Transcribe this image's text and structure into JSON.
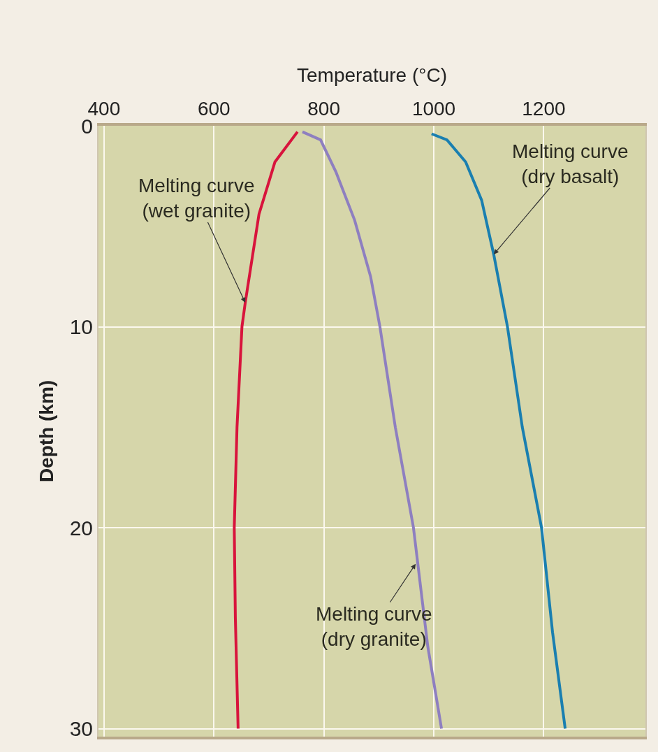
{
  "chart_data": {
    "type": "line",
    "xlabel": "Temperature (°C)",
    "ylabel": "Depth (km)",
    "xlim": [
      390,
      1385
    ],
    "xticks": [
      400,
      600,
      800,
      1000,
      1200
    ],
    "ylim": [
      30.4,
      0
    ],
    "yticks": [
      0,
      10,
      20,
      30
    ],
    "grid": true,
    "marker": "none",
    "line_style": "solid",
    "series": [
      {
        "color": "#d8143c",
        "x": [
          752,
          711,
          682,
          657,
          651,
          642,
          637,
          639,
          644
        ],
        "values": [
          0.3,
          1.8,
          4.4,
          8.8,
          10,
          15,
          20,
          24.5,
          30
        ]
      },
      {
        "color": "#8e7fc0",
        "x": [
          761,
          794,
          822,
          856,
          885,
          902,
          930,
          963,
          989,
          1014
        ],
        "values": [
          0.3,
          0.7,
          2.3,
          4.7,
          7.5,
          10,
          15,
          20,
          25.9,
          30
        ]
      },
      {
        "color": "#1a7fb0",
        "x": [
          996,
          1024,
          1058,
          1087,
          1109,
          1134,
          1161,
          1196,
          1216,
          1239
        ],
        "values": [
          0.4,
          0.7,
          1.8,
          3.7,
          6.4,
          10,
          15,
          20,
          25.2,
          30
        ]
      }
    ],
    "annotations": [
      {
        "text": "Melting curve\n(wet granite)",
        "x": 657,
        "y": 8.8
      },
      {
        "text": "Melting curve\n(dry basalt)",
        "x": 1109,
        "y": 6.4
      },
      {
        "text": "Melting curve\n(dry granite)",
        "x": 967,
        "y": 21.8
      }
    ]
  }
}
